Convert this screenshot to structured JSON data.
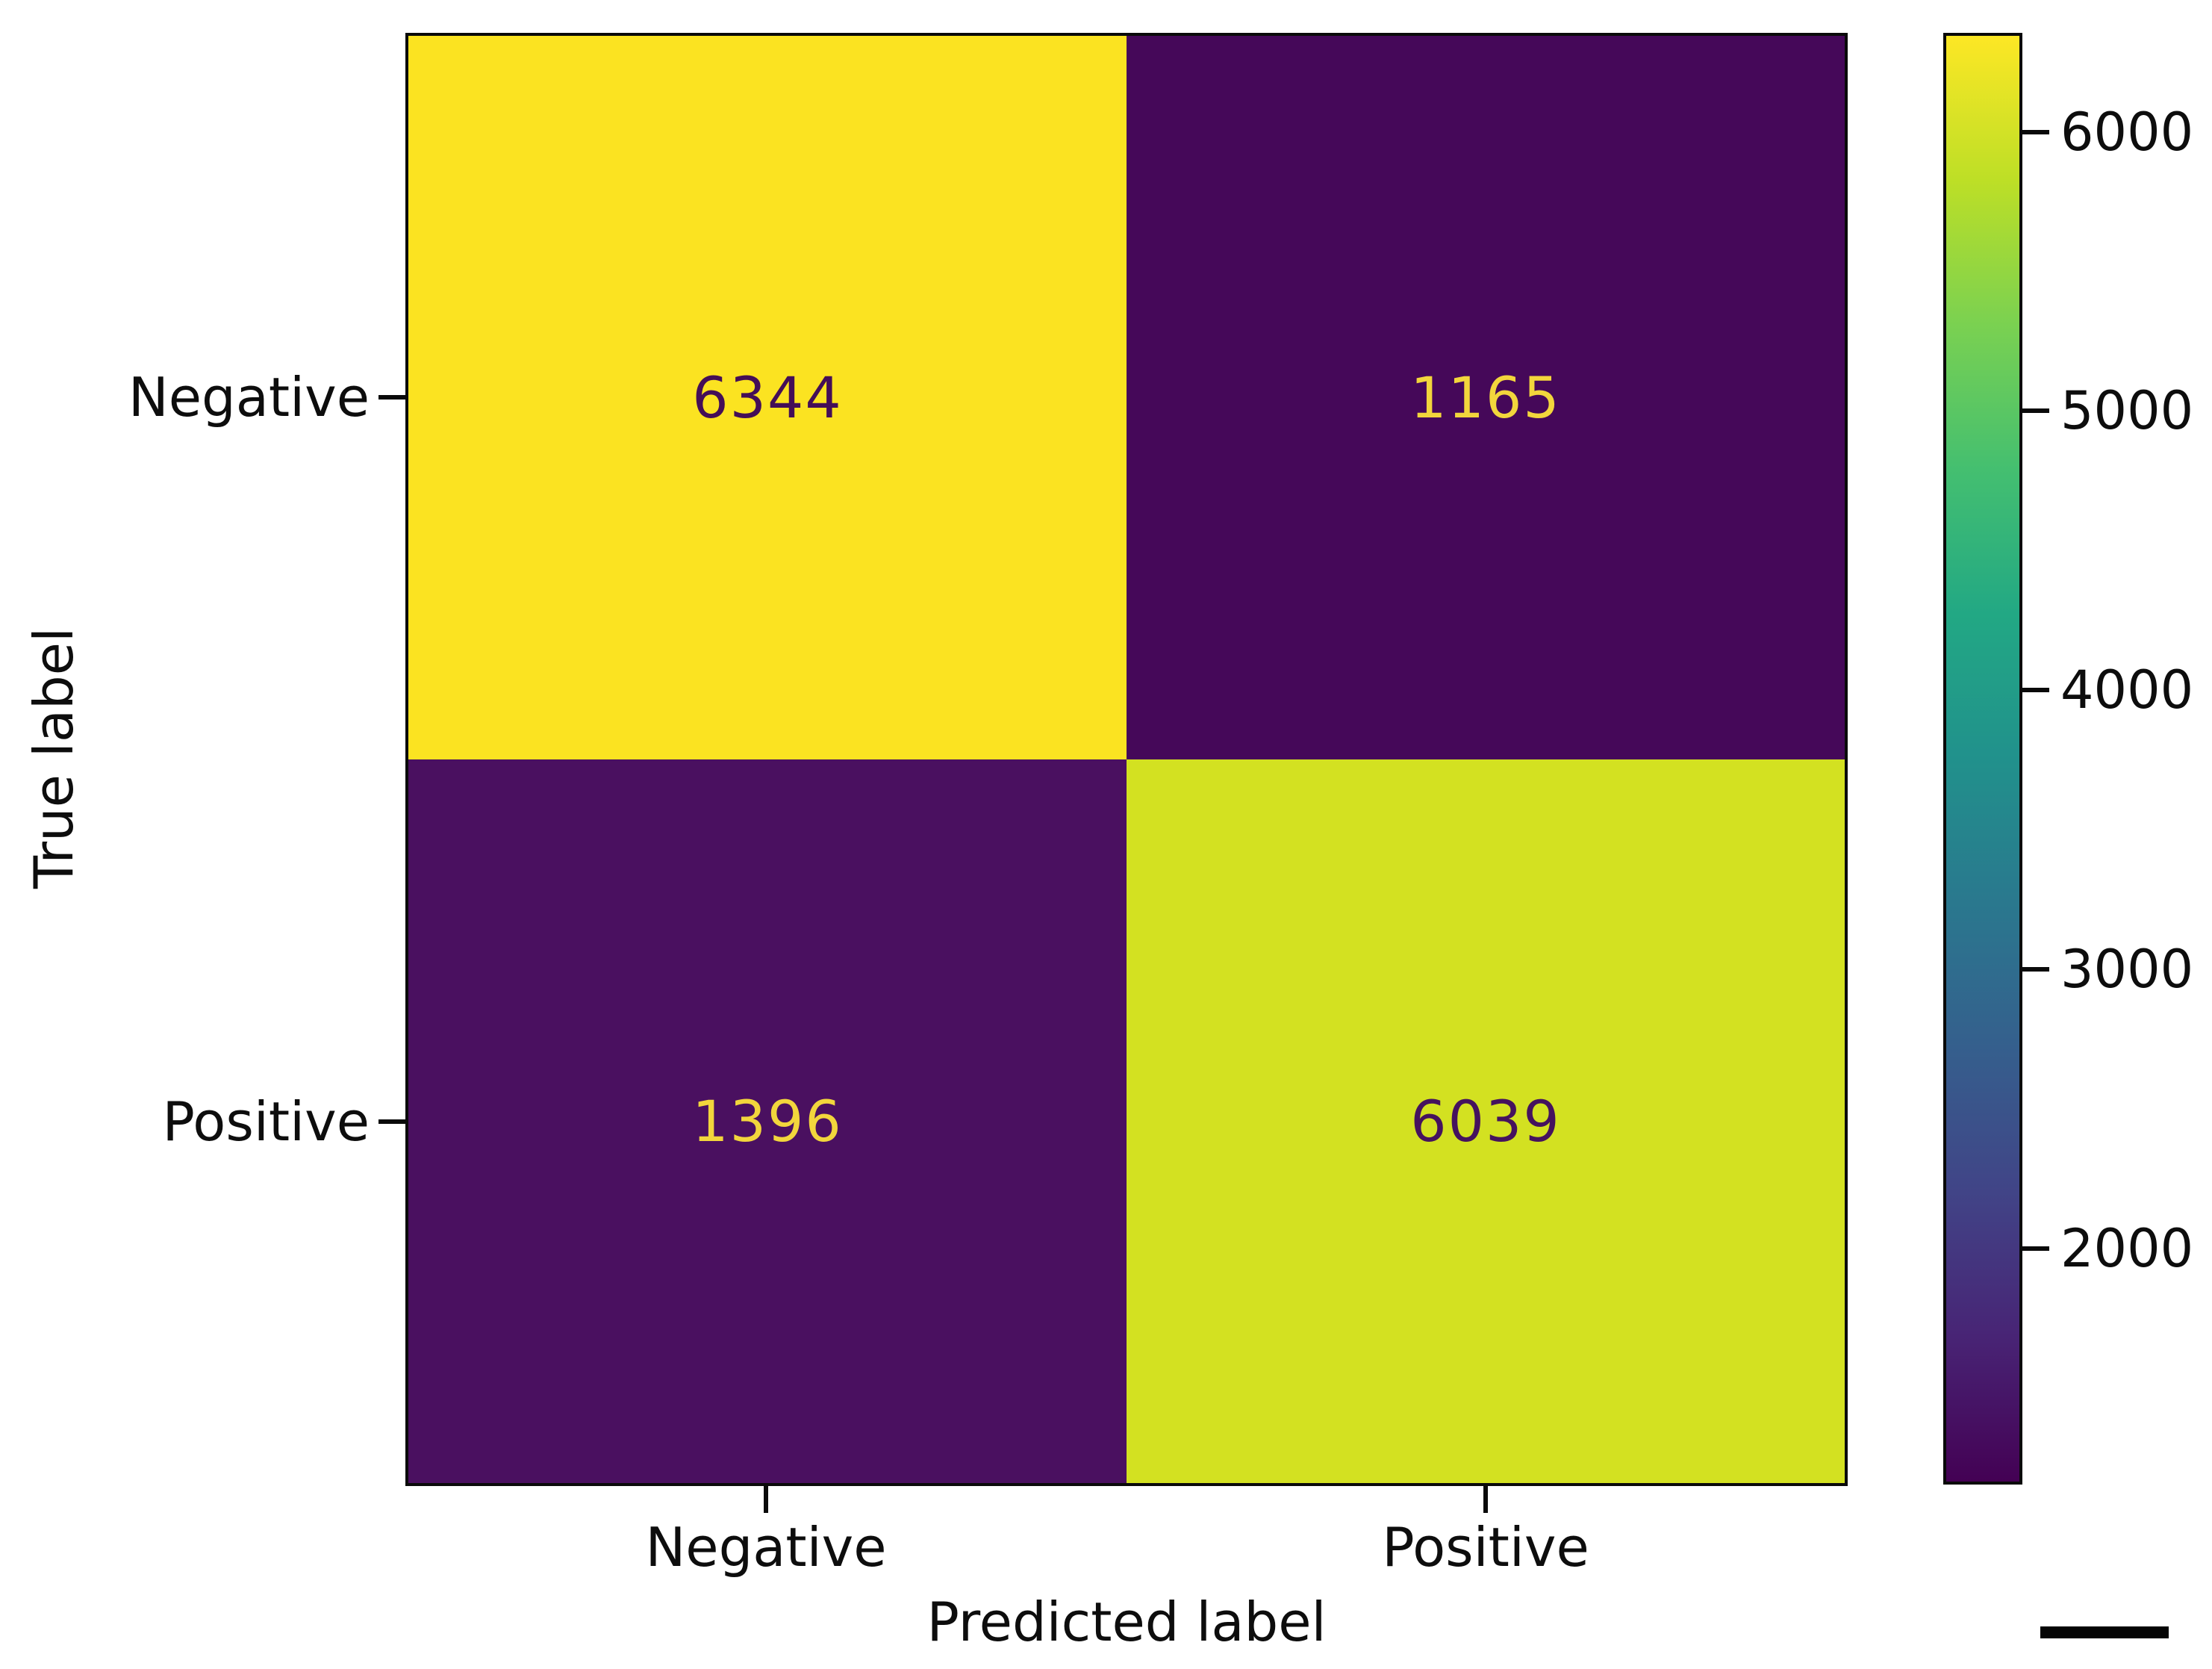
{
  "chart_data": {
    "type": "heatmap",
    "subtype": "confusion-matrix",
    "title": "",
    "xlabel": "Predicted label",
    "ylabel": "True label",
    "x_categories": [
      "Negative",
      "Positive"
    ],
    "y_categories": [
      "Negative",
      "Positive"
    ],
    "matrix": [
      [
        6344,
        1165
      ],
      [
        1396,
        6039
      ]
    ],
    "cells": [
      {
        "true": "Negative",
        "predicted": "Negative",
        "value": "6344",
        "bg": "#fbe321",
        "fg": "#440e57"
      },
      {
        "true": "Negative",
        "predicted": "Positive",
        "value": "1165",
        "bg": "#450859",
        "fg": "#f2d63c"
      },
      {
        "true": "Positive",
        "predicted": "Negative",
        "value": "1396",
        "bg": "#4a1060",
        "fg": "#f2d63c"
      },
      {
        "true": "Positive",
        "predicted": "Positive",
        "value": "6039",
        "bg": "#d3e121",
        "fg": "#45125e"
      }
    ],
    "colorbar": {
      "colormap": "viridis",
      "vmin": 1165,
      "vmax": 6344,
      "ticks": [
        {
          "value": 6000,
          "label": "6000"
        },
        {
          "value": 5000,
          "label": "5000"
        },
        {
          "value": 4000,
          "label": "4000"
        },
        {
          "value": 3000,
          "label": "3000"
        },
        {
          "value": 2000,
          "label": "2000"
        }
      ],
      "gradient_top_to_bottom": [
        "#fde725",
        "#bddf26",
        "#7ad151",
        "#44bf70",
        "#22a884",
        "#21918c",
        "#2a788e",
        "#355f8d",
        "#414487",
        "#482475",
        "#440154"
      ]
    },
    "legend": null,
    "grid": false
  }
}
